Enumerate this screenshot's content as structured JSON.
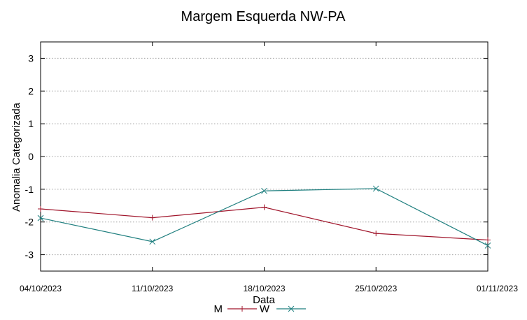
{
  "chart_data": {
    "type": "line",
    "title": "Margem Esquerda NW-PA",
    "xlabel": "Data",
    "ylabel": "Anomalia Categorizada",
    "categories": [
      "04/10/2023",
      "11/10/2023",
      "18/10/2023",
      "25/10/2023",
      "01/11/2023"
    ],
    "ylim": [
      -3.5,
      3.5
    ],
    "yticks": [
      3,
      2,
      1,
      0,
      -1,
      -2,
      -3
    ],
    "grid": true,
    "legend_position": "bottom",
    "series": [
      {
        "name": "M",
        "color": "#a0152b",
        "marker": "plus",
        "values": [
          -1.6,
          -1.87,
          -1.55,
          -2.35,
          -2.55
        ]
      },
      {
        "name": "W",
        "color": "#1f7f7f",
        "marker": "x",
        "values": [
          -1.88,
          -2.6,
          -1.05,
          -0.98,
          -2.72
        ]
      }
    ]
  }
}
